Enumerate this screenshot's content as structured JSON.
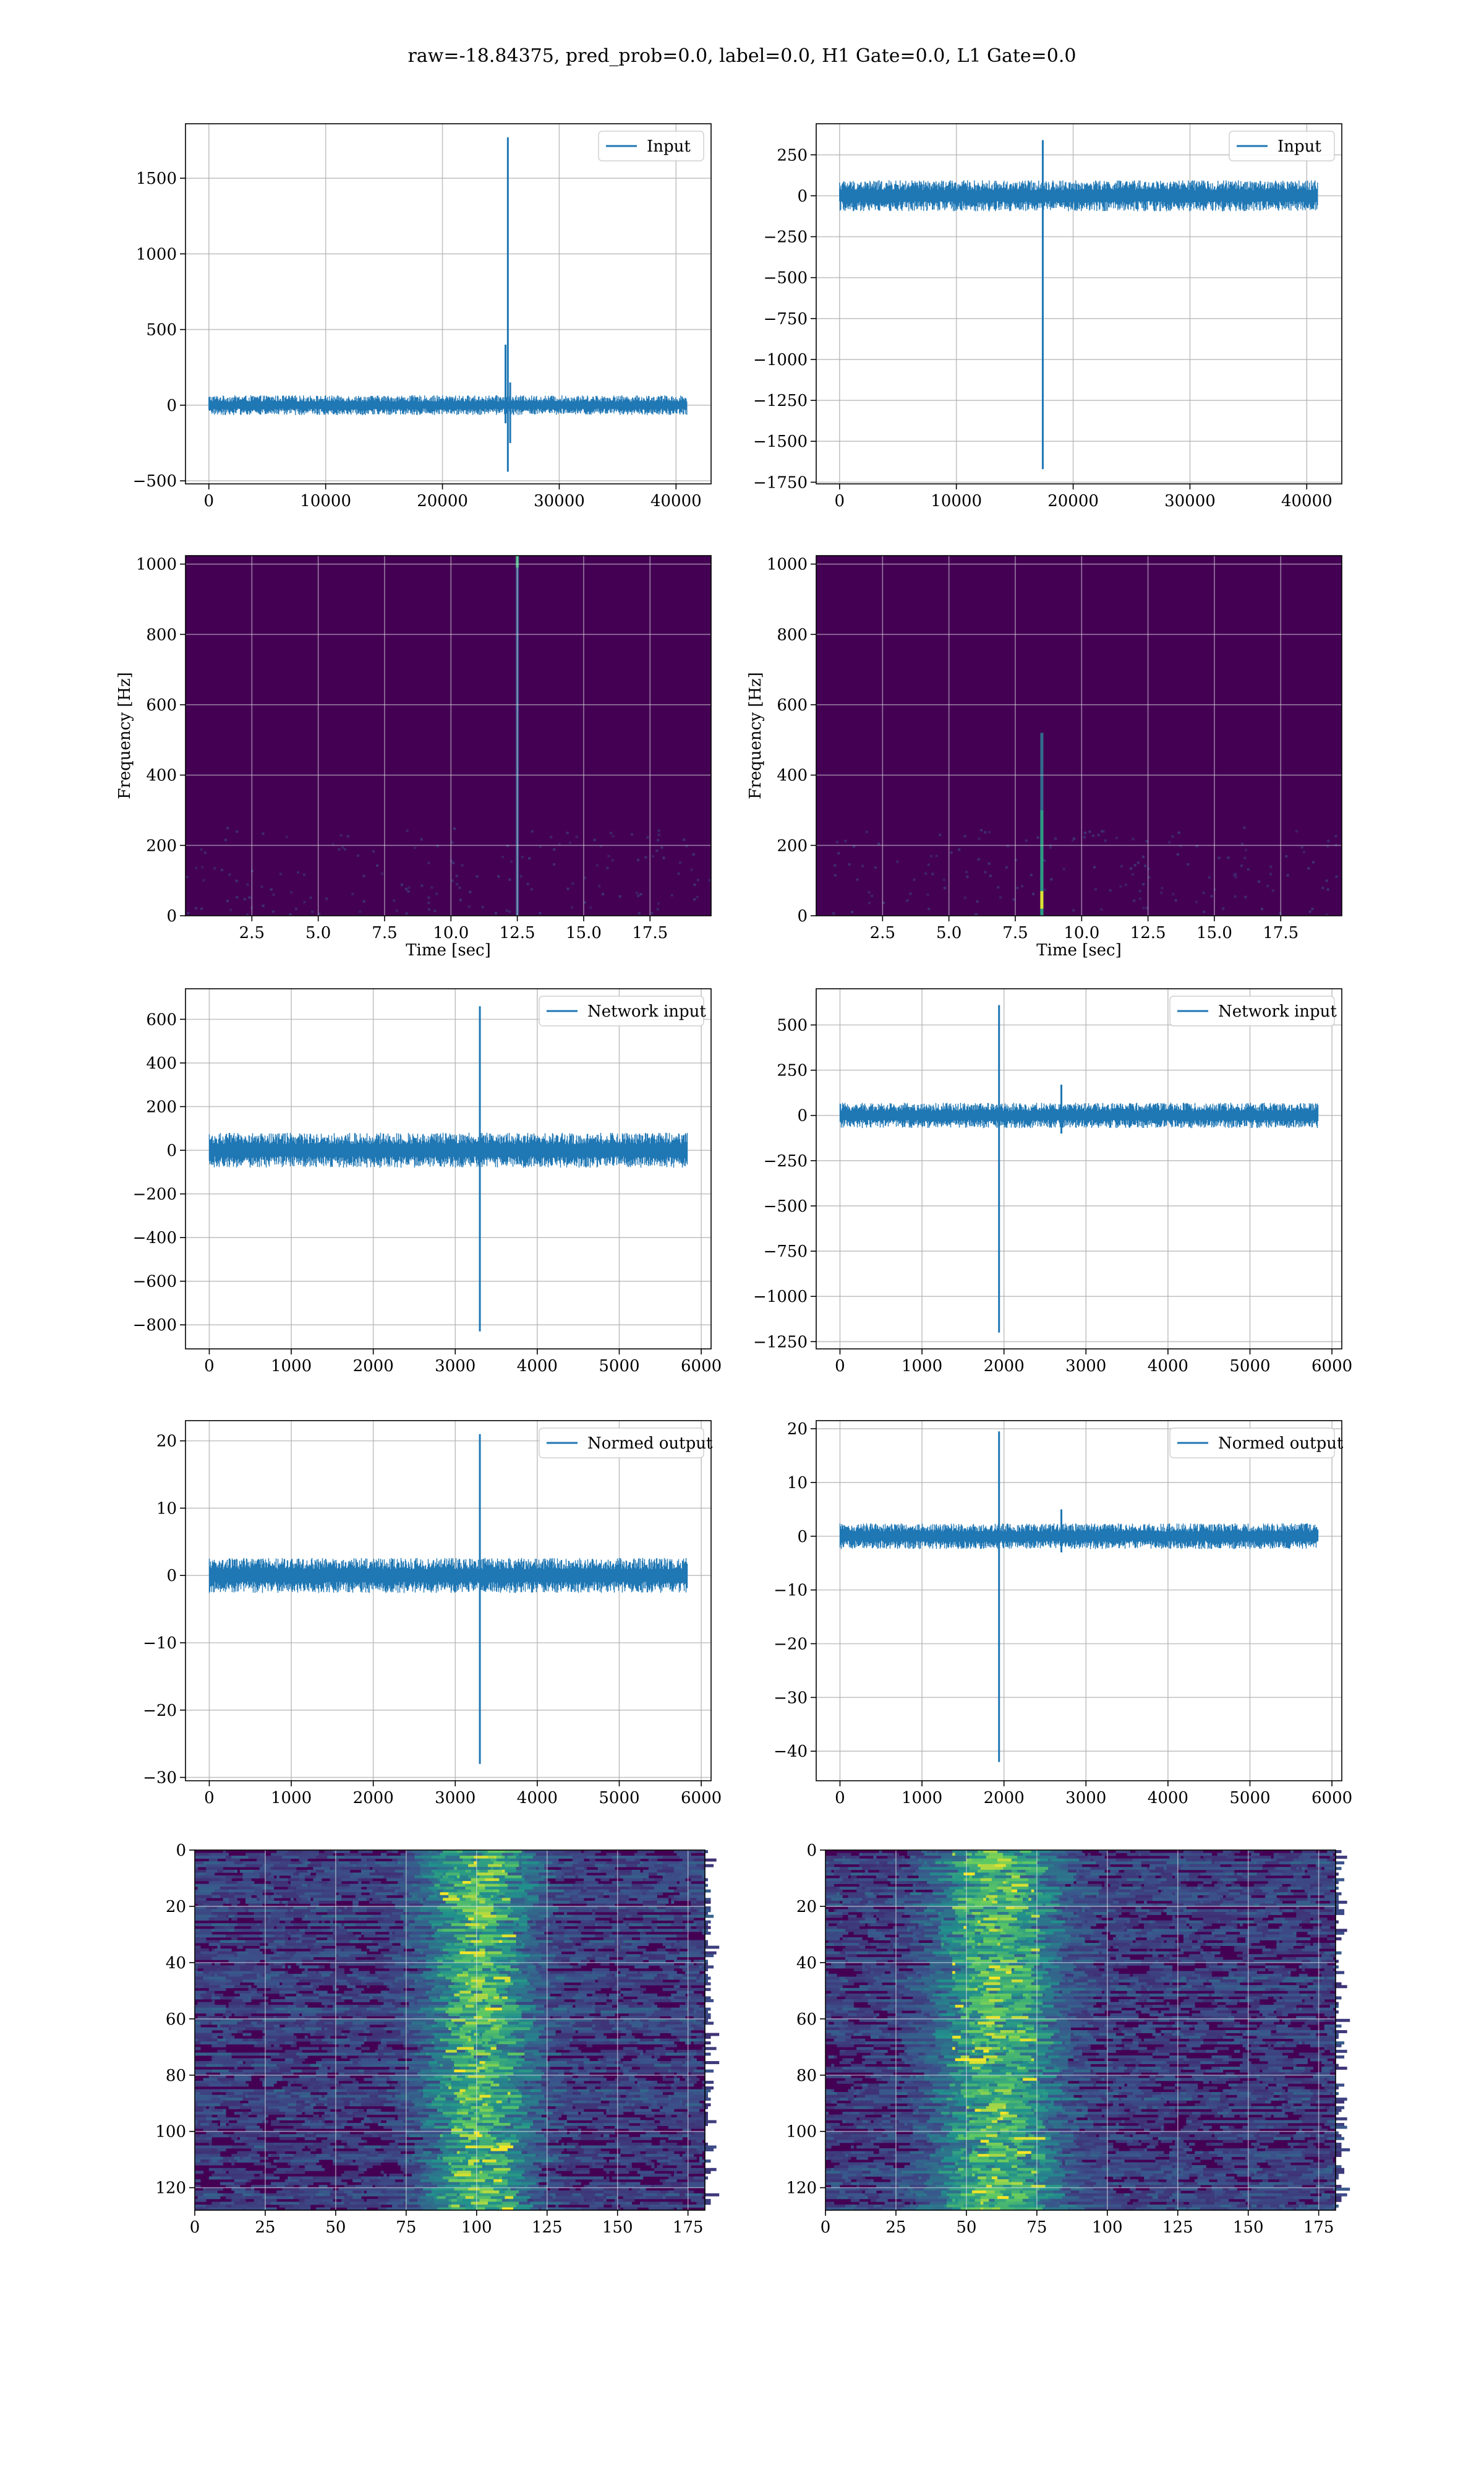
{
  "suptitle": "raw=-18.84375, pred_prob=0.0, label=0.0, H1 Gate=0.0, L1 Gate=0.0",
  "colors": {
    "line": "#1f77b4",
    "grid": "#b0b0b0",
    "viridis_low": "#440154",
    "viridis_mid": "#21918c",
    "viridis_high": "#fde725"
  },
  "chart_data": [
    {
      "id": "h1-input",
      "type": "line",
      "title": "",
      "xlabel": "",
      "ylabel": "",
      "legend": "Input",
      "legend_loc": "upper right",
      "grid": true,
      "xlim": [
        -2000,
        43000
      ],
      "ylim": [
        -520,
        1860
      ],
      "xticks": [
        0,
        10000,
        20000,
        30000,
        40000
      ],
      "xticklabels": [
        "0",
        "10000",
        "20000",
        "30000",
        "40000"
      ],
      "yticks": [
        -500,
        0,
        500,
        1000,
        1500
      ],
      "yticklabels": [
        "−500",
        "0",
        "500",
        "1000",
        "1500"
      ],
      "noise": {
        "x_start": 0,
        "x_end": 40960,
        "amplitude": 65
      },
      "spikes": [
        {
          "x": 25600,
          "max": 1770,
          "min": -440
        },
        {
          "x": 25400,
          "max": 400,
          "min": -120
        },
        {
          "x": 25800,
          "max": 150,
          "min": -250
        }
      ]
    },
    {
      "id": "l1-input",
      "type": "line",
      "title": "",
      "xlabel": "",
      "ylabel": "",
      "legend": "Input",
      "legend_loc": "upper right",
      "grid": true,
      "xlim": [
        -2000,
        43000
      ],
      "ylim": [
        -1760,
        440
      ],
      "xticks": [
        0,
        10000,
        20000,
        30000,
        40000
      ],
      "xticklabels": [
        "0",
        "10000",
        "20000",
        "30000",
        "40000"
      ],
      "yticks": [
        -1750,
        -1500,
        -1250,
        -1000,
        -750,
        -500,
        -250,
        0,
        250
      ],
      "yticklabels": [
        "−1750",
        "−1500",
        "−1250",
        "−1000",
        "−750",
        "−500",
        "−250",
        "0",
        "250"
      ],
      "noise": {
        "x_start": 0,
        "x_end": 40960,
        "amplitude": 95
      },
      "spikes": [
        {
          "x": 17400,
          "max": 340,
          "min": -1670
        }
      ]
    },
    {
      "id": "h1-spectrogram",
      "type": "heatmap",
      "title": "",
      "xlabel": "Time [sec]",
      "ylabel": "Frequency [Hz]",
      "grid": true,
      "xlim": [
        0,
        19.8
      ],
      "ylim": [
        0,
        1024
      ],
      "xticks": [
        2.5,
        5.0,
        7.5,
        10.0,
        12.5,
        15.0,
        17.5
      ],
      "xticklabels": [
        "2.5",
        "5.0",
        "7.5",
        "10.0",
        "12.5",
        "15.0",
        "17.5"
      ],
      "yticks": [
        0,
        200,
        400,
        600,
        800,
        1000
      ],
      "yticklabels": [
        "0",
        "200",
        "400",
        "600",
        "800",
        "1000"
      ],
      "background": "#440154",
      "features": [
        {
          "t": 12.5,
          "f_from": 0,
          "f_to": 1024,
          "intensity": 0.25
        },
        {
          "t": 12.5,
          "f_from": 990,
          "f_to": 1024,
          "intensity": 0.6
        }
      ]
    },
    {
      "id": "l1-spectrogram",
      "type": "heatmap",
      "title": "",
      "xlabel": "Time [sec]",
      "ylabel": "Frequency [Hz]",
      "grid": true,
      "xlim": [
        0,
        19.8
      ],
      "ylim": [
        0,
        1024
      ],
      "xticks": [
        2.5,
        5.0,
        7.5,
        10.0,
        12.5,
        15.0,
        17.5
      ],
      "xticklabels": [
        "2.5",
        "5.0",
        "7.5",
        "10.0",
        "12.5",
        "15.0",
        "17.5"
      ],
      "yticks": [
        0,
        200,
        400,
        600,
        800,
        1000
      ],
      "yticklabels": [
        "0",
        "200",
        "400",
        "600",
        "800",
        "1000"
      ],
      "background": "#440154",
      "features": [
        {
          "t": 8.5,
          "f_from": 0,
          "f_to": 520,
          "intensity": 0.35
        },
        {
          "t": 8.5,
          "f_from": 0,
          "f_to": 300,
          "intensity": 0.55
        },
        {
          "t": 8.5,
          "f_from": 20,
          "f_to": 70,
          "intensity": 0.95
        }
      ]
    },
    {
      "id": "h1-network-input",
      "type": "line",
      "title": "",
      "xlabel": "",
      "ylabel": "",
      "legend": "Network input",
      "legend_loc": "upper right",
      "grid": true,
      "xlim": [
        -290,
        6120
      ],
      "ylim": [
        -910,
        740
      ],
      "xticks": [
        0,
        1000,
        2000,
        3000,
        4000,
        5000,
        6000
      ],
      "xticklabels": [
        "0",
        "1000",
        "2000",
        "3000",
        "4000",
        "5000",
        "6000"
      ],
      "yticks": [
        -800,
        -600,
        -400,
        -200,
        0,
        200,
        400,
        600
      ],
      "yticklabels": [
        "−800",
        "−600",
        "−400",
        "−200",
        "0",
        "200",
        "400",
        "600"
      ],
      "noise": {
        "x_start": 0,
        "x_end": 5830,
        "amplitude": 80
      },
      "spikes": [
        {
          "x": 3300,
          "max": 660,
          "min": -830
        }
      ]
    },
    {
      "id": "l1-network-input",
      "type": "line",
      "title": "",
      "xlabel": "",
      "ylabel": "",
      "legend": "Network input",
      "legend_loc": "upper right",
      "grid": true,
      "xlim": [
        -290,
        6120
      ],
      "ylim": [
        -1290,
        700
      ],
      "xticks": [
        0,
        1000,
        2000,
        3000,
        4000,
        5000,
        6000
      ],
      "xticklabels": [
        "0",
        "1000",
        "2000",
        "3000",
        "4000",
        "5000",
        "6000"
      ],
      "yticks": [
        -1250,
        -1000,
        -750,
        -500,
        -250,
        0,
        250,
        500
      ],
      "yticklabels": [
        "−1250",
        "−1000",
        "−750",
        "−500",
        "−250",
        "0",
        "250",
        "500"
      ],
      "noise": {
        "x_start": 0,
        "x_end": 5830,
        "amplitude": 70
      },
      "spikes": [
        {
          "x": 1940,
          "max": 610,
          "min": -1200
        },
        {
          "x": 2700,
          "max": 170,
          "min": -100
        }
      ]
    },
    {
      "id": "h1-normed-output",
      "type": "line",
      "title": "",
      "xlabel": "",
      "ylabel": "",
      "legend": "Normed output",
      "legend_loc": "upper right",
      "grid": true,
      "xlim": [
        -290,
        6120
      ],
      "ylim": [
        -30.5,
        23
      ],
      "xticks": [
        0,
        1000,
        2000,
        3000,
        4000,
        5000,
        6000
      ],
      "xticklabels": [
        "0",
        "1000",
        "2000",
        "3000",
        "4000",
        "5000",
        "6000"
      ],
      "yticks": [
        -30,
        -20,
        -10,
        0,
        10,
        20
      ],
      "yticklabels": [
        "−30",
        "−20",
        "−10",
        "0",
        "10",
        "20"
      ],
      "noise": {
        "x_start": 0,
        "x_end": 5830,
        "amplitude": 2.6
      },
      "spikes": [
        {
          "x": 3300,
          "max": 21,
          "min": -28
        }
      ]
    },
    {
      "id": "l1-normed-output",
      "type": "line",
      "title": "",
      "xlabel": "",
      "ylabel": "",
      "legend": "Normed output",
      "legend_loc": "upper right",
      "grid": true,
      "xlim": [
        -290,
        6120
      ],
      "ylim": [
        -45.5,
        21.5
      ],
      "xticks": [
        0,
        1000,
        2000,
        3000,
        4000,
        5000,
        6000
      ],
      "xticklabels": [
        "0",
        "1000",
        "2000",
        "3000",
        "4000",
        "5000",
        "6000"
      ],
      "yticks": [
        -40,
        -30,
        -20,
        -10,
        0,
        10,
        20
      ],
      "yticklabels": [
        "−40",
        "−30",
        "−20",
        "−10",
        "0",
        "10",
        "20"
      ],
      "noise": {
        "x_start": 0,
        "x_end": 5830,
        "amplitude": 2.4
      },
      "spikes": [
        {
          "x": 1940,
          "max": 19.5,
          "min": -42
        },
        {
          "x": 2700,
          "max": 5,
          "min": -3
        }
      ]
    },
    {
      "id": "h1-feature-map",
      "type": "heatmap",
      "title": "",
      "xlabel": "",
      "ylabel": "",
      "grid": true,
      "inverted_y": true,
      "xlim": [
        0,
        181
      ],
      "ylim": [
        128,
        0
      ],
      "rows": 128,
      "cols": 181,
      "xticks": [
        0,
        25,
        50,
        75,
        100,
        125,
        150,
        175
      ],
      "xticklabels": [
        "0",
        "25",
        "50",
        "75",
        "100",
        "125",
        "150",
        "175"
      ],
      "yticks": [
        0,
        20,
        40,
        60,
        80,
        100,
        120
      ],
      "yticklabels": [
        "0",
        "20",
        "40",
        "60",
        "80",
        "100",
        "120"
      ],
      "hot_column": 99,
      "hot_spread": 12
    },
    {
      "id": "l1-feature-map",
      "type": "heatmap",
      "title": "",
      "xlabel": "",
      "ylabel": "",
      "grid": true,
      "inverted_y": true,
      "xlim": [
        0,
        181
      ],
      "ylim": [
        128,
        0
      ],
      "rows": 128,
      "cols": 181,
      "xticks": [
        0,
        25,
        50,
        75,
        100,
        125,
        150,
        175
      ],
      "xticklabels": [
        "0",
        "25",
        "50",
        "75",
        "100",
        "125",
        "150",
        "175"
      ],
      "yticks": [
        0,
        20,
        40,
        60,
        80,
        100,
        120
      ],
      "yticklabels": [
        "0",
        "20",
        "40",
        "60",
        "80",
        "100",
        "120"
      ],
      "hot_column": 59,
      "hot_spread": 14
    }
  ]
}
